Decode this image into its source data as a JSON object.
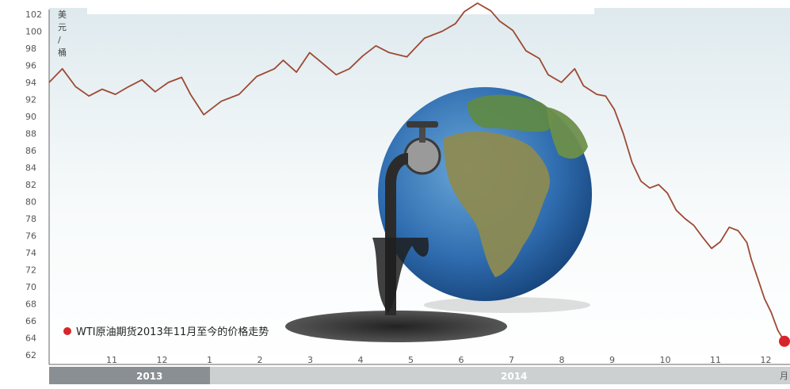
{
  "chart_data": {
    "type": "line",
    "unit_label": "美元/桶",
    "x_unit": "月",
    "legend": "WTI原油期货2013年11月至今的价格走势",
    "y_ticks": [
      "62",
      "64",
      "66",
      "68",
      "70",
      "72",
      "74",
      "76",
      "78",
      "80",
      "82",
      "84",
      "86",
      "88",
      "90",
      "92",
      "94",
      "96",
      "98",
      "100",
      "102"
    ],
    "ylim": [
      62,
      102
    ],
    "x_ticks": [
      "11",
      "12",
      "1",
      "2",
      "3",
      "4",
      "5",
      "6",
      "7",
      "8",
      "9",
      "10",
      "11",
      "12"
    ],
    "years": [
      {
        "label": "2013"
      },
      {
        "label": "2014"
      }
    ],
    "series": [
      {
        "values": [
          [
            0,
            94.0
          ],
          [
            0.3,
            95.6
          ],
          [
            0.6,
            93.5
          ],
          [
            0.9,
            92.4
          ],
          [
            1.2,
            93.2
          ],
          [
            1.5,
            92.6
          ],
          [
            1.8,
            93.5
          ],
          [
            2.1,
            94.3
          ],
          [
            2.4,
            92.9
          ],
          [
            2.7,
            94.0
          ],
          [
            3.0,
            94.6
          ],
          [
            3.2,
            92.6
          ],
          [
            3.5,
            90.2
          ],
          [
            3.9,
            91.8
          ],
          [
            4.3,
            92.6
          ],
          [
            4.7,
            94.7
          ],
          [
            5.1,
            95.6
          ],
          [
            5.3,
            96.6
          ],
          [
            5.6,
            95.2
          ],
          [
            5.9,
            97.5
          ],
          [
            6.2,
            96.2
          ],
          [
            6.5,
            94.9
          ],
          [
            6.8,
            95.6
          ],
          [
            7.1,
            97.1
          ],
          [
            7.4,
            98.3
          ],
          [
            7.7,
            97.5
          ],
          [
            8.1,
            97.0
          ],
          [
            8.5,
            99.2
          ],
          [
            8.9,
            100.0
          ],
          [
            9.2,
            100.9
          ],
          [
            9.4,
            102.3
          ],
          [
            9.7,
            103.3
          ],
          [
            10.0,
            102.4
          ],
          [
            10.2,
            101.2
          ],
          [
            10.5,
            100.1
          ],
          [
            10.8,
            97.7
          ],
          [
            11.1,
            96.8
          ],
          [
            11.3,
            94.9
          ],
          [
            11.6,
            94.0
          ],
          [
            11.9,
            95.6
          ],
          [
            12.1,
            93.6
          ],
          [
            12.4,
            92.6
          ],
          [
            12.6,
            92.4
          ],
          [
            12.8,
            90.8
          ],
          [
            13.0,
            88.0
          ],
          [
            13.2,
            84.6
          ],
          [
            13.4,
            82.4
          ],
          [
            13.6,
            81.6
          ],
          [
            13.8,
            82.0
          ],
          [
            14.0,
            81.0
          ],
          [
            14.2,
            79.0
          ],
          [
            14.4,
            78.0
          ],
          [
            14.6,
            77.2
          ],
          [
            14.8,
            75.8
          ],
          [
            15.0,
            74.5
          ],
          [
            15.2,
            75.3
          ],
          [
            15.4,
            77.0
          ],
          [
            15.6,
            76.6
          ],
          [
            15.8,
            75.2
          ],
          [
            15.9,
            73.2
          ],
          [
            16.05,
            70.9
          ],
          [
            16.2,
            68.6
          ],
          [
            16.35,
            67.0
          ],
          [
            16.5,
            64.9
          ],
          [
            16.65,
            63.6
          ]
        ]
      }
    ],
    "colors": {
      "line": "#9c4a34",
      "marker": "#d7262a",
      "year_dark": "#8a8f93",
      "year_light": "#cdd0d1",
      "sky_top": "#dfeaee"
    }
  }
}
